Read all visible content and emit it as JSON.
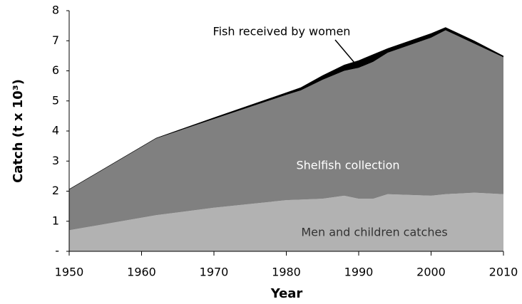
{
  "chart_data": {
    "type": "stacked_area",
    "x_label": "Year",
    "y_label": "Catch (t x 10³)",
    "x": [
      1950,
      1962,
      1970,
      1980,
      1982,
      1985,
      1988,
      1990,
      1992,
      1994,
      2000,
      2002,
      2006,
      2010
    ],
    "series": [
      {
        "name": "Men and children catches",
        "color": "#b2b2b2",
        "values": [
          0.7,
          1.2,
          1.45,
          1.7,
          1.72,
          1.75,
          1.85,
          1.75,
          1.75,
          1.9,
          1.85,
          1.9,
          1.95,
          1.9
        ]
      },
      {
        "name": "Shelfish collection",
        "color": "#808080",
        "values": [
          1.35,
          2.55,
          2.95,
          3.5,
          3.63,
          3.95,
          4.15,
          4.35,
          4.55,
          4.7,
          5.25,
          5.45,
          4.95,
          4.55
        ]
      },
      {
        "name": "Fish received by women",
        "color": "#000000",
        "values": [
          0.02,
          0.02,
          0.05,
          0.08,
          0.1,
          0.15,
          0.2,
          0.25,
          0.25,
          0.15,
          0.15,
          0.1,
          0.1,
          0.05
        ]
      }
    ],
    "xlim": [
      1950,
      2010
    ],
    "xticks": [
      1950,
      1960,
      1970,
      1980,
      1990,
      2000,
      2010
    ],
    "ylim": [
      0,
      8
    ],
    "yticks": [
      {
        "value": 0,
        "label": "-"
      },
      1,
      2,
      3,
      4,
      5,
      6,
      7,
      8
    ]
  }
}
